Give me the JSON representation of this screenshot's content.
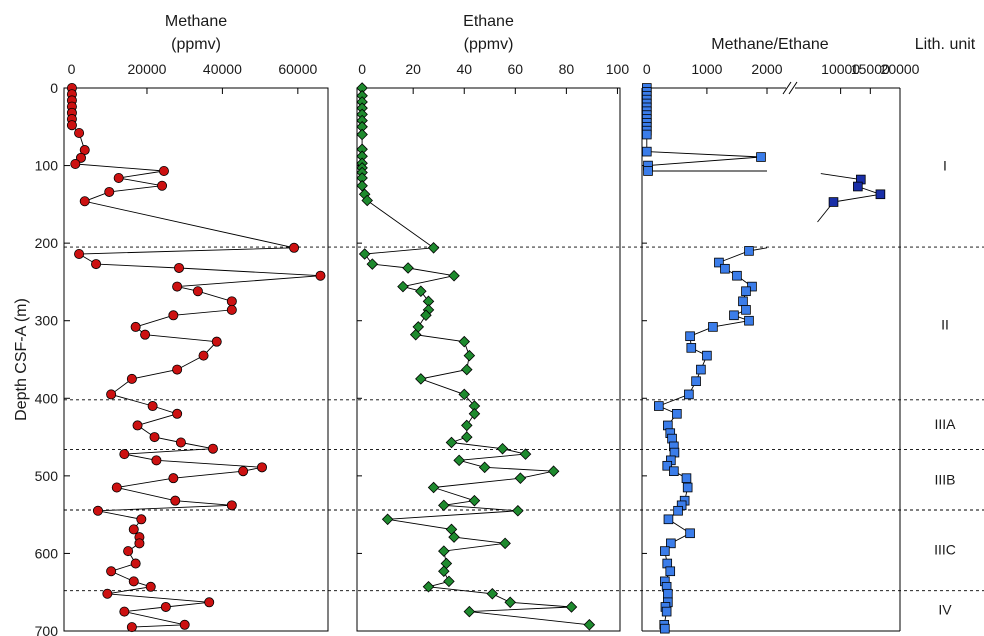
{
  "chart_data": {
    "type": "scatter",
    "y_axis": {
      "label": "Depth CSF-A (m)",
      "range": [
        0,
        700
      ],
      "ticks": [
        0,
        100,
        200,
        300,
        400,
        500,
        600,
        700
      ],
      "inverted": true
    },
    "lith_header": "Lith. unit",
    "unit_labels": [
      {
        "label": "I",
        "depth": 100
      },
      {
        "label": "II",
        "depth": 305
      },
      {
        "label": "IIIA",
        "depth": 433
      },
      {
        "label": "IIIB",
        "depth": 505
      },
      {
        "label": "IIIC",
        "depth": 595
      },
      {
        "label": "IV",
        "depth": 672
      }
    ],
    "unit_boundaries": [
      205,
      402,
      466,
      544,
      648
    ],
    "panels": [
      {
        "key": "methane",
        "title_line1": "Methane",
        "title_line2": "(ppmv)",
        "xlim": [
          -2000,
          68000
        ],
        "ticks": [
          0,
          20000,
          40000,
          60000
        ],
        "tick_labels": [
          "0",
          "20000",
          "40000",
          "60000"
        ],
        "marker": "circle",
        "color": "#cc1111",
        "x": [
          100,
          100,
          100,
          100,
          100,
          100,
          100,
          2000,
          3500,
          2500,
          1000,
          24500,
          12500,
          24000,
          10000,
          3500,
          59000,
          2000,
          6500,
          28500,
          66000,
          28000,
          33500,
          42500,
          42500,
          27000,
          17000,
          19500,
          38500,
          35000,
          28000,
          16000,
          10500,
          21500,
          28000,
          17500,
          22000,
          29000,
          37500,
          14000,
          22500,
          50500,
          45500,
          27000,
          12000,
          27500,
          42500,
          7000,
          18500,
          16500,
          18000,
          18000,
          15000,
          17000,
          10500,
          16500,
          21000,
          9500,
          36500,
          25000,
          14000,
          30000,
          16000
        ],
        "depth": [
          0,
          8,
          16,
          24,
          32,
          40,
          48,
          58,
          80,
          90,
          98,
          107,
          116,
          126,
          134,
          146,
          206,
          214,
          227,
          232,
          242,
          256,
          262,
          275,
          286,
          293,
          308,
          318,
          327,
          345,
          363,
          375,
          395,
          410,
          420,
          435,
          450,
          457,
          465,
          472,
          480,
          489,
          494,
          503,
          515,
          532,
          538,
          545,
          556,
          569,
          579,
          587,
          597,
          613,
          623,
          636,
          643,
          652,
          663,
          669,
          675,
          692,
          695
        ]
      },
      {
        "key": "ethane",
        "title_line1": "Ethane",
        "title_line2": "(ppmv)",
        "xlim": [
          -2,
          101
        ],
        "ticks": [
          0,
          20,
          40,
          60,
          80,
          100
        ],
        "tick_labels": [
          "0",
          "20",
          "40",
          "60",
          "80",
          "100"
        ],
        "marker": "diamond",
        "color": "#1e8a2e",
        "x": [
          0,
          0,
          0,
          0,
          0,
          0,
          0,
          0,
          0,
          0,
          0,
          0,
          0,
          0,
          0,
          1,
          2,
          28,
          1,
          4,
          18,
          36,
          16,
          23,
          26,
          26,
          25,
          22,
          21,
          40,
          42,
          41,
          23,
          40,
          44,
          44,
          41,
          41,
          35,
          55,
          64,
          38,
          48,
          75,
          62,
          28,
          44,
          32,
          61,
          10,
          35,
          36,
          56,
          32,
          33,
          32,
          34,
          26,
          51,
          58,
          82,
          42,
          89
        ],
        "depth": [
          0,
          10,
          18,
          26,
          34,
          42,
          50,
          60,
          79,
          88,
          97,
          103,
          109,
          116,
          126,
          137,
          145,
          206,
          214,
          227,
          232,
          242,
          256,
          262,
          275,
          286,
          293,
          308,
          318,
          327,
          345,
          363,
          375,
          395,
          410,
          420,
          435,
          450,
          457,
          465,
          472,
          480,
          489,
          494,
          503,
          515,
          532,
          538,
          545,
          556,
          569,
          579,
          587,
          597,
          613,
          623,
          636,
          643,
          652,
          663,
          669,
          675,
          692
        ]
      },
      {
        "key": "ratio",
        "title_line1": "Methane/Ethane",
        "title_line2": "",
        "lower_xlim": [
          -80,
          2000
        ],
        "lower_ticks": [
          0,
          1000,
          2000
        ],
        "lower_tick_labels": [
          "0",
          "1000",
          "2000"
        ],
        "upper_xlim": [
          4000,
          20000
        ],
        "upper_ticks": [
          10000,
          15000,
          20000
        ],
        "upper_tick_labels": [
          "10000",
          "15000",
          "20000"
        ],
        "axis_break": true,
        "marker": "square",
        "color": "#3b7dea",
        "lower_x": [
          0,
          0,
          0,
          0,
          0,
          0,
          0,
          0,
          0,
          0,
          0,
          0,
          0,
          0,
          1900,
          20,
          20,
          1700,
          1200,
          1300,
          1500,
          1750,
          1650,
          1600,
          1650,
          1450,
          1700,
          1100,
          720,
          740,
          1000,
          900,
          820,
          700,
          200,
          500,
          350,
          390,
          420,
          450,
          460,
          400,
          340,
          450,
          660,
          680,
          630,
          580,
          520,
          360,
          720,
          400,
          300,
          340,
          390,
          300,
          330,
          350,
          350,
          310,
          330,
          290,
          300
        ],
        "lower_depth": [
          0,
          5,
          10,
          15,
          20,
          25,
          30,
          35,
          40,
          45,
          50,
          55,
          60,
          82,
          89,
          100,
          107,
          210,
          225,
          233,
          242,
          256,
          262,
          275,
          286,
          293,
          300,
          308,
          320,
          335,
          345,
          363,
          378,
          395,
          410,
          420,
          435,
          445,
          452,
          462,
          470,
          480,
          487,
          494,
          503,
          515,
          532,
          538,
          545,
          556,
          574,
          587,
          597,
          613,
          623,
          636,
          643,
          652,
          663,
          669,
          675,
          692,
          697
        ],
        "upper_color": "#1a2fa8",
        "upper_x": [
          13400,
          12900,
          16700,
          8800
        ],
        "upper_depth": [
          118,
          127,
          137,
          147
        ]
      }
    ]
  }
}
